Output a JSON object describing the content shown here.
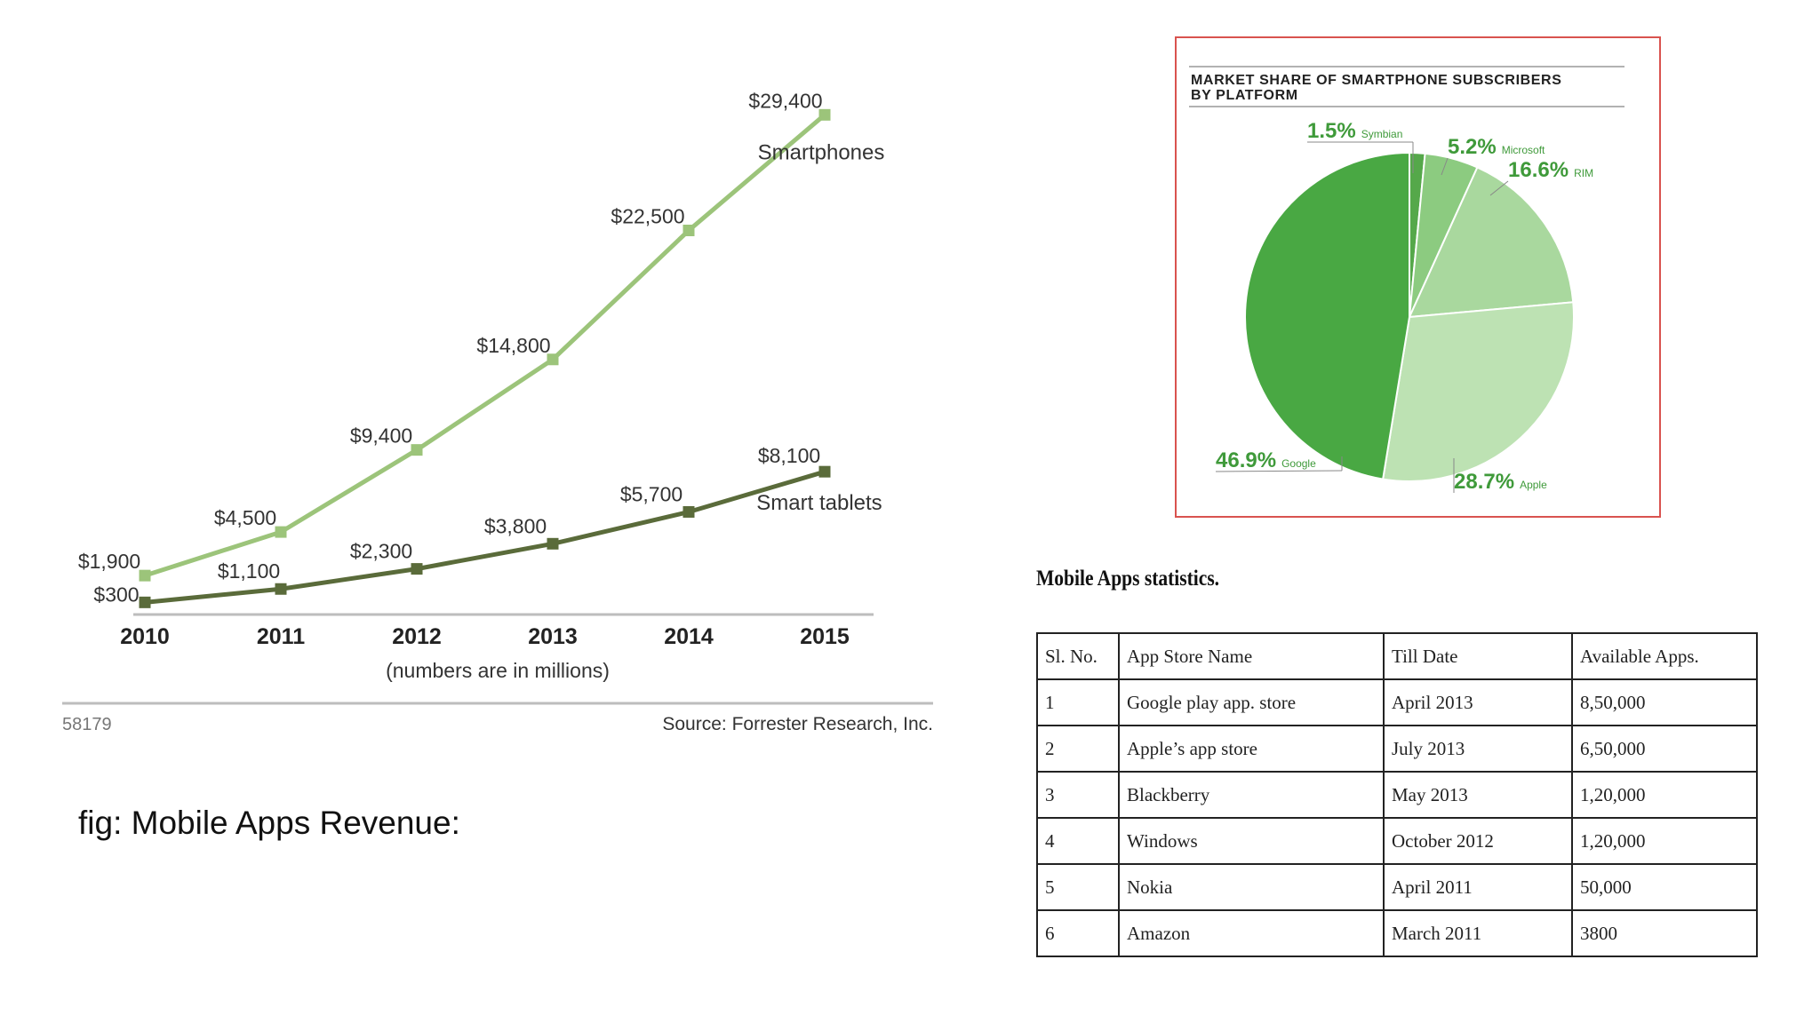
{
  "chart_data": [
    {
      "type": "line",
      "x": [
        "2010",
        "2011",
        "2012",
        "2013",
        "2014",
        "2015"
      ],
      "series": [
        {
          "name": "Smartphones",
          "values": [
            1900,
            4500,
            9400,
            14800,
            22500,
            29400
          ],
          "labels": [
            "$1,900",
            "$4,500",
            "$9,400",
            "$14,800",
            "$22,500",
            "$29,400"
          ],
          "color": "#9cc47a"
        },
        {
          "name": "Smart tablets",
          "values": [
            300,
            1100,
            2300,
            3800,
            5700,
            8100
          ],
          "labels": [
            "$300",
            "$1,100",
            "$2,300",
            "$3,800",
            "$5,700",
            "$8,100"
          ],
          "color": "#5a6b3a"
        }
      ],
      "xlabel": "(numbers are in millions)",
      "ylim": [
        0,
        30000
      ],
      "grid": false,
      "footer_left": "58179",
      "footer_right": "Source: Forrester Research, Inc."
    },
    {
      "type": "pie",
      "title": "MARKET SHARE OF SMARTPHONE SUBSCRIBERS BY PLATFORM",
      "title_lines": [
        "MARKET SHARE OF SMARTPHONE SUBSCRIBERS",
        "BY PLATFORM"
      ],
      "slices": [
        {
          "name": "Symbian",
          "value": 1.5,
          "label": "1.5%",
          "color": "#55a84a"
        },
        {
          "name": "Microsoft",
          "value": 5.2,
          "label": "5.2%",
          "color": "#8ccb80"
        },
        {
          "name": "RIM",
          "value": 16.6,
          "label": "16.6%",
          "color": "#a9d89e"
        },
        {
          "name": "Apple",
          "value": 28.7,
          "label": "28.7%",
          "color": "#bde2b3"
        },
        {
          "name": "Google",
          "value": 46.9,
          "label": "46.9%",
          "color": "#49a843"
        }
      ]
    }
  ],
  "caption": "fig: Mobile Apps Revenue:",
  "table": {
    "title": "Mobile Apps statistics.",
    "headers": [
      "Sl. No.",
      "App Store Name",
      "Till Date",
      "Available Apps."
    ],
    "rows": [
      [
        "1",
        "Google play app. store",
        "April 2013",
        "8,50,000"
      ],
      [
        "2",
        "Apple’s app store",
        "July 2013",
        "6,50,000"
      ],
      [
        "3",
        "Blackberry",
        "May 2013",
        "1,20,000"
      ],
      [
        "4",
        "Windows",
        "October 2012",
        "1,20,000"
      ],
      [
        "5",
        "Nokia",
        "April 2011",
        "50,000"
      ],
      [
        "6",
        "Amazon",
        "March 2011",
        "3800"
      ]
    ]
  },
  "colors": {
    "pie_border": "#d9534f",
    "pie_label": "#3f9a3a"
  }
}
